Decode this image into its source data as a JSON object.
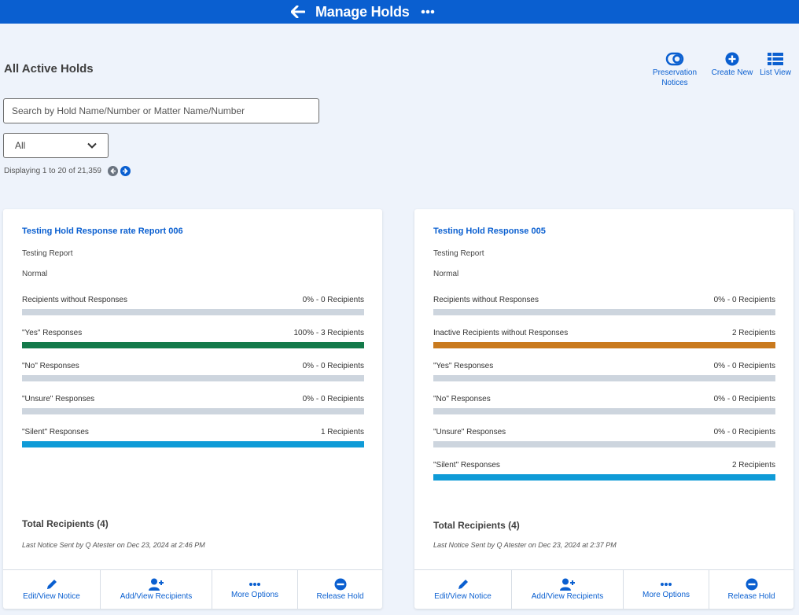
{
  "header": {
    "title": "Manage Holds",
    "color": "#0a5fd0"
  },
  "page": {
    "title": "All Active Holds"
  },
  "actions": {
    "preservation_line1": "Preservation",
    "preservation_line2": "Notices",
    "create_new": "Create New",
    "list_view": "List View"
  },
  "search": {
    "placeholder": "Search by Hold Name/Number or Matter Name/Number",
    "value": ""
  },
  "filter": {
    "selected": "All"
  },
  "paging": {
    "text": "Displaying 1 to 20 of 21,359"
  },
  "cards": [
    {
      "hold_name": "Testing Hold Response rate Report 006",
      "matter": "Testing Report",
      "priority": "Normal",
      "metrics": [
        {
          "label": "Recipients without Responses",
          "value": "0% - 0 Recipients",
          "fill": 0,
          "color": "#cdd5de"
        },
        {
          "label": "\"Yes\" Responses",
          "value": "100% - 3 Recipients",
          "fill": 1,
          "color": "#137a4a"
        },
        {
          "label": "\"No\" Responses",
          "value": "0% - 0 Recipients",
          "fill": 0,
          "color": "#cdd5de"
        },
        {
          "label": "\"Unsure\" Responses",
          "value": "0% - 0 Recipients",
          "fill": 0,
          "color": "#cdd5de"
        },
        {
          "label": "\"Silent\" Responses",
          "value": "1 Recipients",
          "fill": 1,
          "color": "#0f9bd7"
        }
      ],
      "total": "Total Recipients (4)",
      "last_notice": "Last Notice Sent by Q Atester on Dec 23, 2024 at 2:46 PM",
      "footer": {
        "edit": "Edit/View Notice",
        "add": "Add/View Recipients",
        "more": "More Options",
        "release": "Release Hold"
      }
    },
    {
      "hold_name": "Testing Hold Response 005",
      "matter": "Testing Report",
      "priority": "Normal",
      "metrics": [
        {
          "label": "Recipients without Responses",
          "value": "0% - 0 Recipients",
          "fill": 0,
          "color": "#cdd5de"
        },
        {
          "label": "Inactive Recipients without Responses",
          "value": "2 Recipients",
          "fill": 1,
          "color": "#c97a1e"
        },
        {
          "label": "\"Yes\" Responses",
          "value": "0% - 0 Recipients",
          "fill": 0,
          "color": "#cdd5de"
        },
        {
          "label": "\"No\" Responses",
          "value": "0% - 0 Recipients",
          "fill": 0,
          "color": "#cdd5de"
        },
        {
          "label": "\"Unsure\" Responses",
          "value": "0% - 0 Recipients",
          "fill": 0,
          "color": "#cdd5de"
        },
        {
          "label": "\"Silent\" Responses",
          "value": "2 Recipients",
          "fill": 1,
          "color": "#0f9bd7"
        }
      ],
      "total": "Total Recipients (4)",
      "last_notice": "Last Notice Sent by Q Atester on Dec 23, 2024 at 2:37 PM",
      "footer": {
        "edit": "Edit/View Notice",
        "add": "Add/View Recipients",
        "more": "More Options",
        "release": "Release Hold"
      }
    }
  ]
}
